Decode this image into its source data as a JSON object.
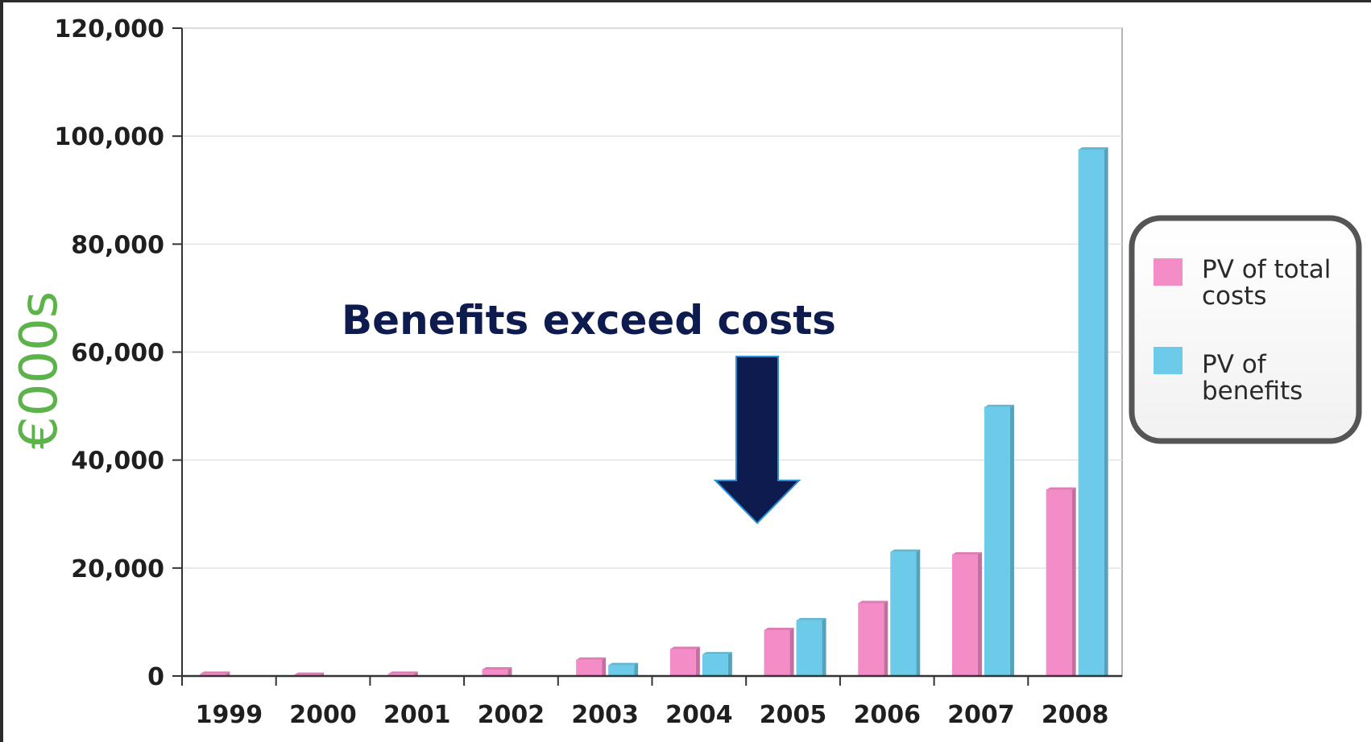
{
  "chart_data": {
    "type": "bar",
    "categories": [
      "1999",
      "2000",
      "2001",
      "2002",
      "2003",
      "2004",
      "2005",
      "2006",
      "2007",
      "2008"
    ],
    "series": [
      {
        "name": "PV of total costs",
        "values": [
          400,
          200,
          400,
          1200,
          3000,
          5000,
          8500,
          13500,
          22500,
          34500
        ],
        "color": "#f48cc8"
      },
      {
        "name": "PV of benefits",
        "values": [
          0,
          0,
          0,
          0,
          2000,
          4000,
          10300,
          23000,
          49800,
          97500
        ],
        "color": "#6dcbea"
      }
    ],
    "ylabel": "€000s",
    "ylim": [
      0,
      120000
    ],
    "yticks": [
      "0",
      "20,000",
      "40,000",
      "60,000",
      "80,000",
      "100,000",
      "120,000"
    ],
    "ytick_values": [
      0,
      20000,
      40000,
      60000,
      80000,
      100000,
      120000
    ],
    "grid": true,
    "legend_position": "right",
    "annotation": "Benefits exceed costs",
    "annotation_points_to": "2005",
    "colors": {
      "annotation": "#0d1b4f",
      "ylabel": "#5cb34a",
      "arrow": "#0d1b4f"
    }
  }
}
